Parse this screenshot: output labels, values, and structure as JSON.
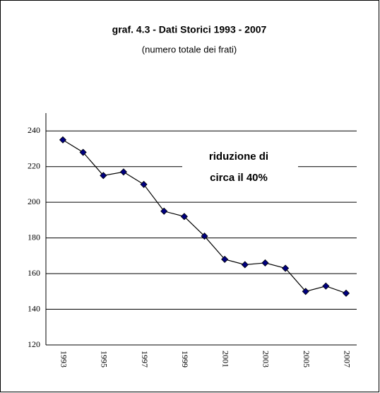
{
  "chart_data": {
    "type": "line",
    "title": "graf. 4.3 - Dati Storici 1993 - 2007",
    "subtitle": "(numero totale dei frati)",
    "annotation": [
      "riduzione di",
      "circa il 40%"
    ],
    "categories": [
      "1993",
      null,
      "1995",
      null,
      "1997",
      null,
      "1999",
      null,
      "2001",
      null,
      "2003",
      null,
      "2005",
      null,
      "2007"
    ],
    "series": [
      {
        "name": "frati",
        "color": "#000080",
        "values": [
          235,
          228,
          215,
          217,
          210,
          195,
          192,
          181,
          168,
          165,
          166,
          163,
          150,
          153,
          149
        ]
      }
    ],
    "ylim": [
      120,
      250
    ],
    "yticks": [
      120,
      140,
      160,
      180,
      200,
      220,
      240
    ],
    "grid": true
  }
}
